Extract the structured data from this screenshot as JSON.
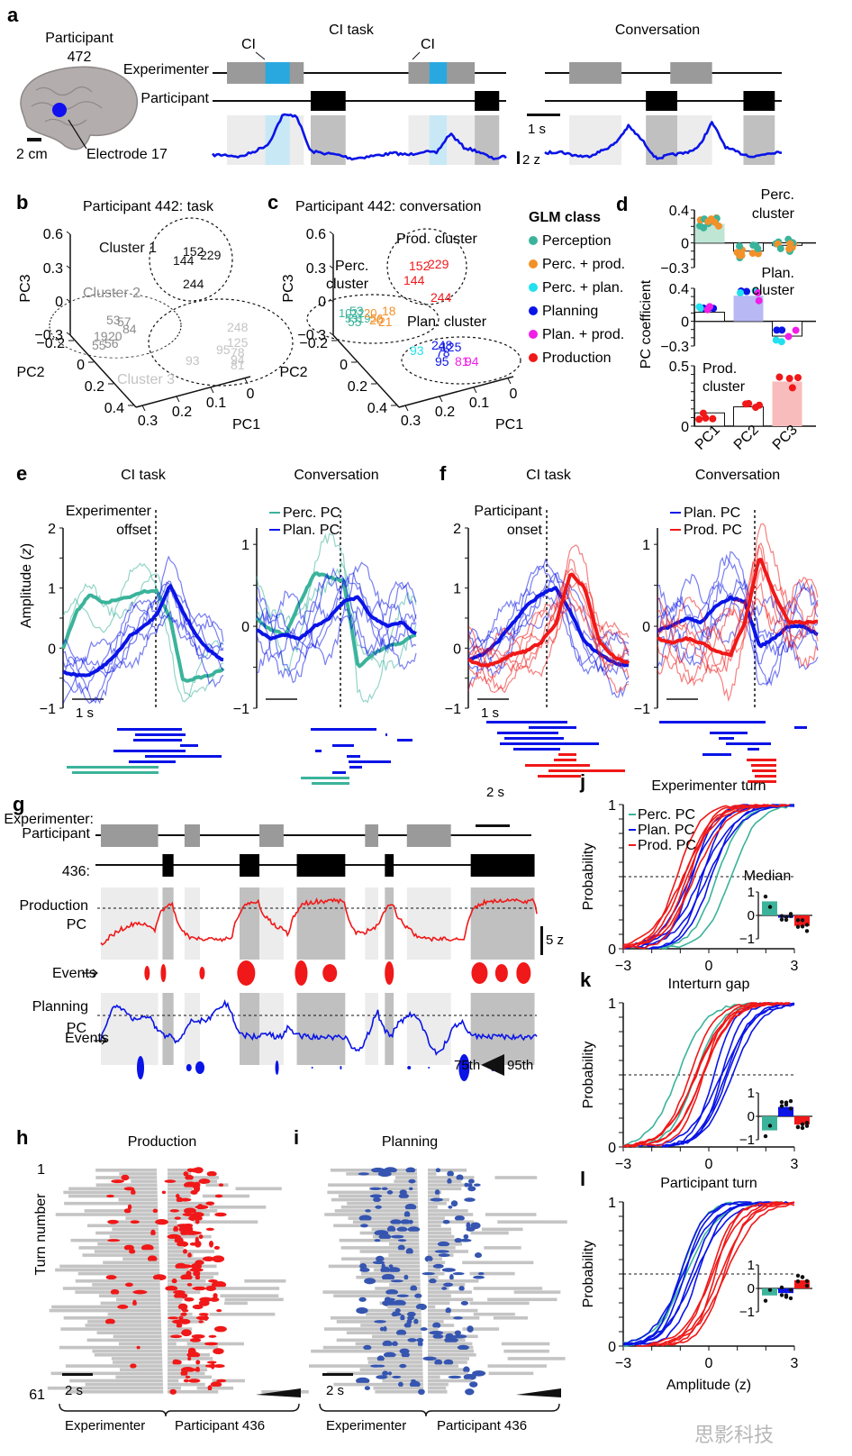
{
  "colors": {
    "perception": "#3bb39b",
    "perc_prod": "#f2912a",
    "perc_plan": "#22e0ef",
    "planning": "#0a14e6",
    "plan_prod": "#f01ee6",
    "production": "#f01818",
    "exp_gray": "#9a9a9a",
    "ci_blue": "#29a8e0",
    "shade_light": "#ececec",
    "shade_dark": "#c0c0c0",
    "shade_ci": "#c8e8f6",
    "raster_gray": "#c4c4c4",
    "planning_event": "#3555b0"
  },
  "chart_data": [
    {
      "id": "a",
      "type": "line",
      "panel_label": "a",
      "brain": {
        "participant_label": "Participant",
        "participant_id": "472",
        "scale_label": "2 cm",
        "electrode_label": "Electrode 17"
      },
      "titles": [
        "CI task",
        "Conversation"
      ],
      "row_labels": [
        "Experimenter",
        "Participant"
      ],
      "ci_label": "CI",
      "time_scale": "1 s",
      "amp_scale": "2 z",
      "segments_ci": {
        "experimenter": [
          [
            0,
            1.1,
            "speech"
          ],
          [
            0.55,
            0.9,
            "ci"
          ],
          [
            2.6,
            3.55,
            "speech"
          ],
          [
            2.9,
            3.15,
            "ci"
          ]
        ],
        "participant": [
          [
            1.2,
            1.7
          ],
          [
            3.55,
            3.9
          ]
        ]
      },
      "segments_conv": {
        "experimenter": [
          [
            0.35,
            1.1
          ],
          [
            1.8,
            2.4
          ]
        ],
        "participant": [
          [
            1.45,
            1.9
          ],
          [
            2.85,
            3.3
          ]
        ]
      }
    },
    {
      "id": "b",
      "type": "scatter",
      "panel_label": "b",
      "title": "Participant 442: task",
      "axes": {
        "pc1_label": "PC1",
        "pc2_label": "PC2",
        "pc3_label": "PC3",
        "pc3_ticks": [
          "0.6",
          "0.3",
          "0",
          "-0.3"
        ],
        "pc2_ticks": [
          "-0.2",
          "0",
          "0.2",
          "0.4"
        ],
        "pc1_ticks": [
          "0.3",
          "0.2",
          "0.1",
          "0"
        ]
      },
      "clusters": [
        {
          "name": "Cluster 1",
          "color": "#111111",
          "electrodes": [
            "152",
            "229",
            "144",
            "244"
          ]
        },
        {
          "name": "Cluster 2",
          "color": "#8c8c8c",
          "electrodes": [
            "19",
            "20",
            "56",
            "55",
            "53",
            "57",
            "84"
          ]
        },
        {
          "name": "Cluster 3",
          "color": "#c4c4c4",
          "electrodes": [
            "248",
            "125",
            "78",
            "95",
            "94",
            "81",
            "93"
          ]
        }
      ]
    },
    {
      "id": "c",
      "type": "scatter",
      "panel_label": "c",
      "title": "Participant 442: conversation",
      "clusters": [
        {
          "name": "Prod. cluster",
          "electrodes": [
            {
              "id": "152",
              "cls": "production"
            },
            {
              "id": "229",
              "cls": "production"
            },
            {
              "id": "144",
              "cls": "production"
            },
            {
              "id": "244",
              "cls": "production"
            }
          ]
        },
        {
          "name": "Perc. cluster",
          "electrodes": [
            {
              "id": "53",
              "cls": "perception"
            },
            {
              "id": "55",
              "cls": "perception"
            },
            {
              "id": "18",
              "cls": "perc_prod"
            },
            {
              "id": "20",
              "cls": "perc_prod"
            },
            {
              "id": "21",
              "cls": "perc_prod"
            }
          ]
        },
        {
          "name": "Plan. cluster",
          "electrodes": [
            {
              "id": "93",
              "cls": "perc_plan"
            },
            {
              "id": "248",
              "cls": "planning"
            },
            {
              "id": "125",
              "cls": "planning"
            },
            {
              "id": "78",
              "cls": "planning"
            },
            {
              "id": "95",
              "cls": "planning"
            },
            {
              "id": "81",
              "cls": "plan_prod"
            },
            {
              "id": "94",
              "cls": "plan_prod"
            }
          ]
        }
      ],
      "legend": {
        "title": "GLM class",
        "position": "right",
        "items": [
          {
            "label": "Perception",
            "key": "perception"
          },
          {
            "label": "Perc. + prod.",
            "key": "perc_prod"
          },
          {
            "label": "Perc. + plan.",
            "key": "perc_plan"
          },
          {
            "label": "Planning",
            "key": "planning"
          },
          {
            "label": "Plan. + prod.",
            "key": "plan_prod"
          },
          {
            "label": "Production",
            "key": "production"
          }
        ]
      }
    },
    {
      "id": "d",
      "type": "bar",
      "panel_label": "d",
      "ylabel": "PC coefficient",
      "categories": [
        "PC1",
        "PC2",
        "PC3"
      ],
      "subplots": [
        {
          "name": "Perc. cluster",
          "ylim": [
            -0.3,
            0.4
          ],
          "ticks": [
            "0.4",
            "0",
            "-0.3"
          ],
          "bar_fill": [
            "#bfe5d5",
            "#ffffff",
            "#ffffff"
          ],
          "values": [
            0.23,
            -0.1,
            -0.03
          ]
        },
        {
          "name": "Plan. cluster",
          "ylim": [
            -0.3,
            0.4
          ],
          "ticks": [
            "0.4",
            "0",
            "-0.3"
          ],
          "bar_fill": [
            "#ffffff",
            "#b8b8f5",
            "#ffffff"
          ],
          "values": [
            0.11,
            0.31,
            -0.18
          ]
        },
        {
          "name": "Prod. cluster",
          "ylim": [
            0,
            0.5
          ],
          "ticks": [
            "0.5",
            "0"
          ],
          "bar_fill": [
            "#ffffff",
            "#ffffff",
            "#f9bcbc"
          ],
          "values": [
            0.11,
            0.16,
            0.37
          ]
        }
      ]
    },
    {
      "id": "e",
      "type": "line",
      "panel_label": "e",
      "subplots": [
        {
          "title": "CI task",
          "event_label": "Experimenter offset",
          "ylim": [
            -1,
            2
          ],
          "ticks": [
            "2",
            "1",
            "0",
            "-1"
          ],
          "scale": "1 s",
          "series": [
            {
              "name": "Perc. PC",
              "key": "perception",
              "values": [
                0.0,
                0.6,
                0.9,
                0.75,
                0.8,
                0.85,
                0.95,
                0.95,
                0.5,
                -0.55,
                -0.5,
                -0.45,
                -0.35
              ]
            },
            {
              "name": "Plan. PC",
              "key": "planning",
              "values": [
                -0.4,
                -0.45,
                -0.45,
                -0.3,
                -0.1,
                0.2,
                0.35,
                0.55,
                1.05,
                0.6,
                0.2,
                -0.05,
                -0.2
              ]
            }
          ]
        },
        {
          "title": "Conversation",
          "ylim": [
            -1,
            1.2
          ],
          "ticks": [
            "1",
            "0",
            "-1"
          ],
          "scale": "",
          "series": [
            {
              "name": "Perc. PC",
              "key": "perception",
              "values": [
                0.1,
                -0.05,
                -0.1,
                0.3,
                0.65,
                0.6,
                0.55,
                -0.5,
                -0.35,
                -0.25,
                -0.2,
                -0.1
              ]
            },
            {
              "name": "Plan. PC",
              "key": "planning",
              "values": [
                -0.05,
                -0.15,
                -0.1,
                -0.15,
                0.0,
                0.1,
                0.3,
                0.35,
                0.1,
                0.0,
                0.05,
                -0.1
              ]
            }
          ]
        }
      ],
      "legend": [
        {
          "label": "Perc. PC",
          "key": "perception"
        },
        {
          "label": "Plan. PC",
          "key": "planning"
        }
      ]
    },
    {
      "id": "f",
      "type": "line",
      "panel_label": "f",
      "subplots": [
        {
          "title": "CI task",
          "event_label": "Participant onset",
          "ylim": [
            -1,
            2
          ],
          "ticks": [
            "2",
            "1",
            "0",
            "-1"
          ],
          "scale": "1 s",
          "series": [
            {
              "name": "Plan. PC",
              "key": "planning",
              "values": [
                -0.2,
                -0.1,
                0.1,
                0.4,
                0.7,
                0.9,
                1.0,
                0.6,
                0.1,
                -0.1,
                -0.25,
                -0.3
              ]
            },
            {
              "name": "Prod. PC",
              "key": "production",
              "values": [
                -0.2,
                -0.3,
                -0.25,
                -0.1,
                -0.05,
                0.1,
                0.4,
                1.25,
                1.0,
                0.1,
                -0.15,
                -0.25
              ]
            }
          ]
        },
        {
          "title": "Conversation",
          "ylim": [
            -1,
            1.2
          ],
          "ticks": [
            "1",
            "0",
            "-1"
          ],
          "scale": "",
          "series": [
            {
              "name": "Plan. PC",
              "key": "planning",
              "values": [
                -0.05,
                0.0,
                0.1,
                0.05,
                0.25,
                0.35,
                0.3,
                -0.25,
                -0.15,
                0.0,
                0.0,
                -0.1
              ]
            },
            {
              "name": "Prod. PC",
              "key": "production",
              "values": [
                -0.15,
                -0.2,
                -0.15,
                -0.2,
                -0.3,
                -0.35,
                0.05,
                0.85,
                0.4,
                0.05,
                0.05,
                0.05
              ]
            }
          ]
        }
      ],
      "legend": [
        {
          "label": "Plan. PC",
          "key": "planning"
        },
        {
          "label": "Prod. PC",
          "key": "production"
        }
      ]
    },
    {
      "id": "g",
      "type": "line",
      "panel_label": "g",
      "row_labels": {
        "experimenter": "Experimenter:",
        "participant": "Participant 436:",
        "production": "Production PC",
        "planning": "Planning PC",
        "events": "Events"
      },
      "time_scale": "2 s",
      "amp_scale": "5 z",
      "percentile_legend": [
        "75th",
        "95th"
      ],
      "experimenter_turns": [
        [
          0,
          1.3
        ],
        [
          1.9,
          2.25
        ],
        [
          3.6,
          4.15
        ],
        [
          6.0,
          6.3
        ],
        [
          6.95,
          7.95
        ]
      ],
      "participant_turns": [
        [
          1.4,
          1.65
        ],
        [
          3.15,
          3.6
        ],
        [
          4.45,
          5.55
        ],
        [
          6.45,
          6.65
        ],
        [
          8.4,
          9.85
        ]
      ]
    },
    {
      "id": "h",
      "type": "scatter",
      "panel_label": "h",
      "title": "Production",
      "ylabel": "Turn number",
      "yticks": [
        "1",
        "61"
      ],
      "time_scale": "2 s",
      "brace_labels": [
        "Experimenter",
        "Participant 436"
      ]
    },
    {
      "id": "i",
      "type": "scatter",
      "panel_label": "i",
      "title": "Planning",
      "time_scale": "2 s",
      "brace_labels": [
        "Experimenter",
        "Participant 436"
      ]
    },
    {
      "id": "jkl",
      "type": "line",
      "xlabel": "Amplitude (z)",
      "ylabel": "Probability",
      "xlim": [
        -3,
        3
      ],
      "ylim": [
        0,
        1
      ],
      "xticks": [
        "-3",
        "0",
        "3"
      ],
      "yticks": [
        "0",
        "1"
      ],
      "legend": [
        {
          "label": "Perc. PC",
          "key": "perception"
        },
        {
          "label": "Plan. PC",
          "key": "planning"
        },
        {
          "label": "Prod. PC",
          "key": "production"
        }
      ],
      "inset_label": "Median",
      "inset_ticks": [
        "1",
        "0",
        "-1"
      ],
      "subplots": [
        {
          "panel_label": "j",
          "title": "Experimenter turn",
          "medians": {
            "perception": 0.6,
            "planning": -0.1,
            "production": -0.45
          },
          "cdf_centers": {
            "perception": 0.45,
            "planning": -0.3,
            "production": -0.75
          }
        },
        {
          "panel_label": "k",
          "title": "Interturn gap",
          "medians": {
            "perception": -0.6,
            "planning": 0.4,
            "production": -0.35
          },
          "cdf_centers": {
            "perception": -0.7,
            "planning": 0.5,
            "production": -0.45
          }
        },
        {
          "panel_label": "l",
          "title": "Participant turn",
          "medians": {
            "perception": -0.3,
            "planning": -0.2,
            "production": 0.35
          },
          "cdf_centers": {
            "perception": -0.6,
            "planning": -0.6,
            "production": 0.3
          }
        }
      ]
    }
  ],
  "watermark": "思影科技"
}
